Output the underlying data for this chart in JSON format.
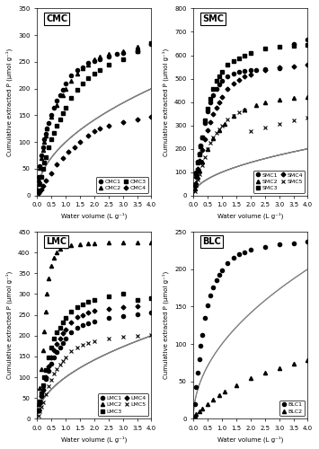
{
  "panels": [
    {
      "label": "CMC",
      "ylim": [
        0,
        350
      ],
      "yticks": [
        0,
        50,
        100,
        150,
        200,
        250,
        300,
        350
      ],
      "xlim": [
        0,
        4.0
      ],
      "xticks": [
        0.0,
        0.5,
        1.0,
        1.5,
        2.0,
        2.5,
        3.0,
        3.5,
        4.0
      ],
      "ncol": 2
    },
    {
      "label": "SMC",
      "ylim": [
        0,
        800
      ],
      "yticks": [
        0,
        100,
        200,
        300,
        400,
        500,
        600,
        700,
        800
      ],
      "xlim": [
        0,
        4.0
      ],
      "xticks": [
        0.0,
        0.5,
        1.0,
        1.5,
        2.0,
        2.5,
        3.0,
        3.5,
        4.0
      ],
      "ncol": 2
    },
    {
      "label": "LMC",
      "ylim": [
        0,
        450
      ],
      "yticks": [
        0,
        50,
        100,
        150,
        200,
        250,
        300,
        350,
        400,
        450
      ],
      "xlim": [
        0,
        4.0
      ],
      "xticks": [
        0.0,
        0.5,
        1.0,
        1.5,
        2.0,
        2.5,
        3.0,
        3.5,
        4.0
      ],
      "ncol": 2
    },
    {
      "label": "BLC",
      "ylim": [
        0,
        250
      ],
      "yticks": [
        0,
        50,
        100,
        150,
        200,
        250
      ],
      "xlim": [
        0,
        4.0
      ],
      "xticks": [
        0.0,
        0.5,
        1.0,
        1.5,
        2.0,
        2.5,
        3.0,
        3.5,
        4.0
      ],
      "ncol": 1
    }
  ],
  "ylabel": "Cumulative extracted P (μmol g⁻¹)",
  "xlabel": "Water volume (L g⁻¹)",
  "marker_size_map": {
    "o": 3,
    "^": 3,
    "s": 3,
    "D": 3,
    "x": 3
  },
  "fit_color": "gray",
  "fit_linewidth": 0.8,
  "label_fontsize": 7,
  "tick_fontsize": 5,
  "axis_fontsize": 5,
  "legend_fontsize": 4.5
}
